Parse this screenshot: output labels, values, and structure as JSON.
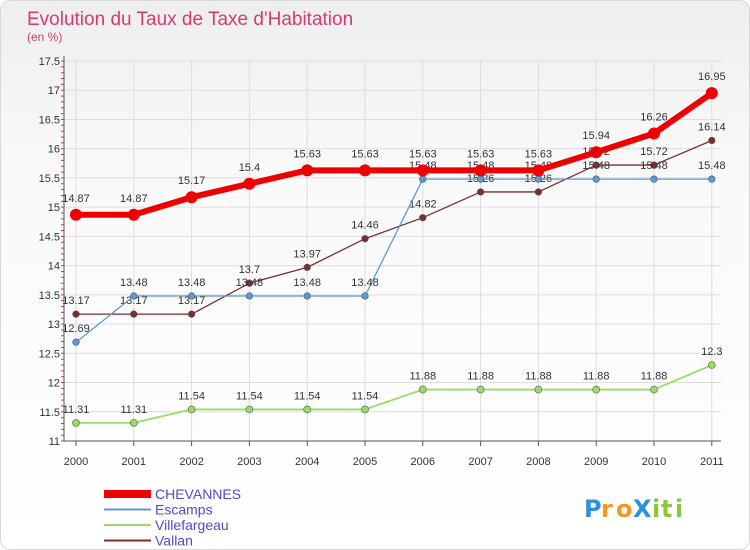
{
  "chart_data": {
    "type": "line",
    "title": "Evolution du Taux de Taxe d'Habitation",
    "subtitle": "(en %)",
    "x": [
      "2000",
      "2001",
      "2002",
      "2003",
      "2004",
      "2005",
      "2006",
      "2007",
      "2008",
      "2009",
      "2010",
      "2011"
    ],
    "y_ticks": [
      "11",
      "11.5",
      "12",
      "12.5",
      "13",
      "13.5",
      "14",
      "14.5",
      "15",
      "15.5",
      "16",
      "16.5",
      "17",
      "17.5"
    ],
    "ylim": [
      11,
      17.5
    ],
    "grid": true,
    "legend_position": "bottom-left",
    "series": [
      {
        "name": "CHEVANNES",
        "color": "#ee0000",
        "values": [
          14.87,
          14.87,
          15.17,
          15.4,
          15.63,
          15.63,
          15.63,
          15.63,
          15.63,
          15.94,
          16.26,
          16.95
        ],
        "labels": [
          "14.87",
          "14.87",
          "15.17",
          "15.4",
          "15.63",
          "15.63",
          "15.63",
          "15.63",
          "15.63",
          "15.94",
          "16.26",
          "16.95"
        ]
      },
      {
        "name": "Escamps",
        "color": "#5b9bd5",
        "values": [
          12.69,
          13.48,
          13.48,
          13.48,
          13.48,
          13.48,
          15.48,
          15.48,
          15.48,
          15.48,
          15.48,
          15.48
        ],
        "labels": [
          "12.69",
          "13.48",
          "13.48",
          "13.48",
          "13.48",
          "13.48",
          "15.48",
          "15.48",
          "15.48",
          "15.48",
          "15.48",
          "15.48"
        ]
      },
      {
        "name": "Villefargeau",
        "color": "#99dd66",
        "values": [
          11.31,
          11.31,
          11.54,
          11.54,
          11.54,
          11.54,
          11.88,
          11.88,
          11.88,
          11.88,
          11.88,
          12.3
        ],
        "labels": [
          "11.31",
          "11.31",
          "11.54",
          "11.54",
          "11.54",
          "11.54",
          "11.88",
          "11.88",
          "11.88",
          "11.88",
          "11.88",
          "12.3"
        ]
      },
      {
        "name": "Vallan",
        "color": "#7a2e2e",
        "values": [
          13.17,
          13.17,
          13.17,
          13.7,
          13.97,
          14.46,
          14.82,
          15.26,
          15.26,
          15.72,
          15.72,
          16.14
        ],
        "labels": [
          "13.17",
          "13.17",
          "13.17",
          "13.7",
          "13.97",
          "14.46",
          "14.82",
          "15.26",
          "15.26",
          "15.72",
          "15.72",
          "16.14"
        ]
      }
    ]
  },
  "brand": {
    "text": "ProXiti"
  }
}
